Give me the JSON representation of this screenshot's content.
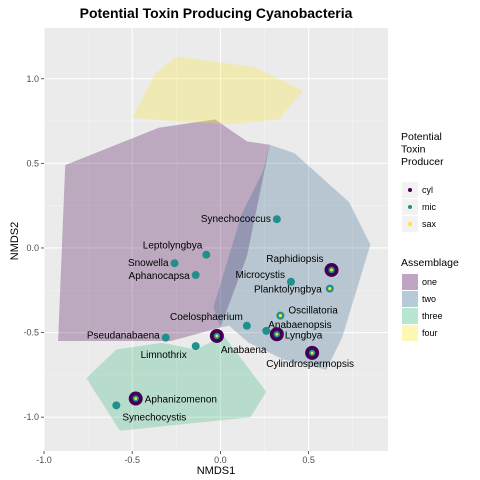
{
  "chart_data": {
    "type": "scatter",
    "title": "Potential Toxin Producing Cyanobacteria",
    "xlabel": "NMDS1",
    "ylabel": "NMDS2",
    "xlim": [
      -1.0,
      0.95
    ],
    "ylim": [
      -1.2,
      1.3
    ],
    "xticks": [
      -1.0,
      -0.5,
      0.0,
      0.5
    ],
    "xtick_labels": [
      "-1.0",
      "-0.5",
      "0.0",
      "0.5"
    ],
    "yticks": [
      -1.0,
      -0.5,
      0.0,
      0.5,
      1.0
    ],
    "ytick_labels": [
      "-1.0",
      "-0.5",
      "0.0",
      "0.5",
      "1.0"
    ],
    "grid": true,
    "legend_position": "right",
    "legend_toxin": {
      "title": "Potential\nToxin\nProducer",
      "entries": [
        {
          "label": "cyl",
          "color": "#440154"
        },
        {
          "label": "mic",
          "color": "#21908C"
        },
        {
          "label": "sax",
          "color": "#FDE725"
        }
      ]
    },
    "legend_assemblage": {
      "title": "Assemblage",
      "entries": [
        {
          "label": "one",
          "color": "#440154"
        },
        {
          "label": "two",
          "color": "#31688E"
        },
        {
          "label": "three",
          "color": "#35B779"
        },
        {
          "label": "four",
          "color": "#FDE725"
        }
      ]
    },
    "hulls": [
      {
        "name": "one",
        "color": "#440154",
        "points": [
          [
            -0.88,
            0.49
          ],
          [
            -0.35,
            0.71
          ],
          [
            -0.03,
            0.76
          ],
          [
            0.15,
            0.63
          ],
          [
            0.28,
            0.61
          ],
          [
            0.15,
            -0.05
          ],
          [
            0.0,
            -0.47
          ],
          [
            -0.28,
            -0.55
          ],
          [
            -0.92,
            -0.55
          ]
        ]
      },
      {
        "name": "two",
        "color": "#31688E",
        "points": [
          [
            0.28,
            0.61
          ],
          [
            0.42,
            0.56
          ],
          [
            0.73,
            0.27
          ],
          [
            0.85,
            0.02
          ],
          [
            0.69,
            -0.53
          ],
          [
            0.6,
            -0.72
          ],
          [
            0.36,
            -0.66
          ],
          [
            0.16,
            -0.56
          ],
          [
            0.05,
            -0.46
          ],
          [
            0.0,
            -0.47
          ],
          [
            -0.04,
            -0.35
          ],
          [
            0.12,
            0.2
          ],
          [
            0.24,
            0.45
          ]
        ]
      },
      {
        "name": "three",
        "color": "#35B779",
        "points": [
          [
            -0.76,
            -0.77
          ],
          [
            -0.59,
            -0.6
          ],
          [
            -0.33,
            -0.56
          ],
          [
            -0.14,
            -0.6
          ],
          [
            0.02,
            -0.52
          ],
          [
            0.26,
            -0.85
          ],
          [
            0.17,
            -1.0
          ],
          [
            -0.57,
            -1.08
          ]
        ]
      },
      {
        "name": "four",
        "color": "#FDE725",
        "points": [
          [
            -0.5,
            0.77
          ],
          [
            -0.37,
            1.03
          ],
          [
            -0.25,
            1.13
          ],
          [
            0.19,
            1.07
          ],
          [
            0.47,
            0.93
          ],
          [
            0.33,
            0.76
          ],
          [
            0.05,
            0.73
          ],
          [
            -0.27,
            0.75
          ]
        ]
      }
    ],
    "points": [
      {
        "label": "Synechococcus",
        "x": 0.32,
        "y": 0.17,
        "toxin": "mic",
        "size": 4
      },
      {
        "label": "Leptolyngbya",
        "x": -0.08,
        "y": -0.04,
        "toxin": "mic",
        "size": 4
      },
      {
        "label": "Snowella",
        "x": -0.26,
        "y": -0.09,
        "toxin": "mic",
        "size": 4
      },
      {
        "label": "Aphanocapsa",
        "x": -0.14,
        "y": -0.16,
        "toxin": "mic",
        "size": 4
      },
      {
        "label": "Raphidiopsis",
        "x": 0.63,
        "y": -0.13,
        "toxin": "cyl",
        "size": 7
      },
      {
        "label": "Microcystis",
        "x": 0.4,
        "y": -0.2,
        "toxin": "mic",
        "size": 4
      },
      {
        "label": "Planktolyngbya",
        "x": 0.62,
        "y": -0.24,
        "toxin": "mic",
        "size": 4,
        "ring": true
      },
      {
        "label": "Oscillatoria",
        "x": 0.34,
        "y": -0.4,
        "toxin": "mic",
        "size": 4,
        "ring": true
      },
      {
        "label": "Coelosphaerium",
        "x": 0.15,
        "y": -0.46,
        "toxin": "mic",
        "size": 4
      },
      {
        "label": "Anabaenopsis",
        "x": 0.26,
        "y": -0.49,
        "toxin": "mic",
        "size": 4
      },
      {
        "label": "Pseudanabaena",
        "x": -0.31,
        "y": -0.53,
        "toxin": "mic",
        "size": 4
      },
      {
        "label": "Lyngbya",
        "x": 0.32,
        "y": -0.51,
        "toxin": "cyl",
        "size": 7
      },
      {
        "label": "Anabaena",
        "x": -0.02,
        "y": -0.52,
        "toxin": "cyl",
        "size": 7
      },
      {
        "label": "Limnothrix",
        "x": -0.14,
        "y": -0.58,
        "toxin": "mic",
        "size": 4
      },
      {
        "label": "Cylindrospermopsis",
        "x": 0.52,
        "y": -0.62,
        "toxin": "cyl",
        "size": 7
      },
      {
        "label": "Aphanizomenon",
        "x": -0.48,
        "y": -0.89,
        "toxin": "cyl",
        "size": 7
      },
      {
        "label": "Synechocystis",
        "x": -0.59,
        "y": -0.93,
        "toxin": "mic",
        "size": 4
      }
    ]
  }
}
